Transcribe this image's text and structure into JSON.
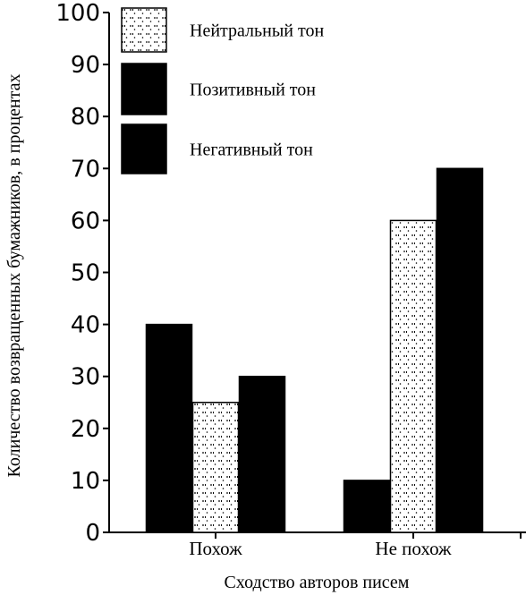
{
  "chart_data": {
    "type": "bar",
    "xlabel": "Сходство авторов писем",
    "ylabel": "Количество возвращенных бумажников, в процентах",
    "categories": [
      "Похож",
      "Не похож"
    ],
    "ylim": [
      0,
      100
    ],
    "yticks": [
      0,
      10,
      20,
      30,
      40,
      50,
      60,
      70,
      80,
      90,
      100
    ],
    "grid": false,
    "legend_position": "top-left",
    "bar_order": [
      "Позитивный тон",
      "Нейтральный тон",
      "Негативный тон"
    ],
    "legend_order": [
      "Нейтральный тон",
      "Позитивный тон",
      "Негативный тон"
    ],
    "series": [
      {
        "name": "Нейтральный тон",
        "values": [
          25,
          60
        ],
        "fill": "dotted",
        "color": "#ffffff"
      },
      {
        "name": "Позитивный тон",
        "values": [
          40,
          10
        ],
        "fill": "solid",
        "color": "#000000"
      },
      {
        "name": "Негативный тон",
        "values": [
          30,
          70
        ],
        "fill": "solid",
        "color": "#000000"
      }
    ]
  }
}
